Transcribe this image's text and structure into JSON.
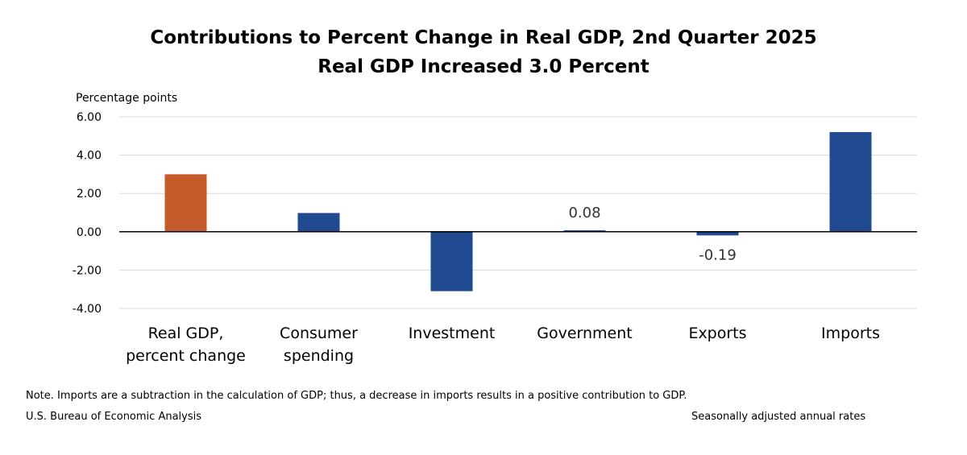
{
  "chart_data": {
    "type": "bar",
    "title": "Contributions to Percent Change in Real GDP, 2nd Quarter 2025",
    "subtitle": "Real GDP Increased 3.0 Percent",
    "ylabel": "Percentage points",
    "ylim": [
      -4,
      6
    ],
    "yticks": [
      "6.00",
      "4.00",
      "2.00",
      "0.00",
      "-2.00",
      "-4.00"
    ],
    "ytick_values": [
      6,
      4,
      2,
      0,
      -2,
      -4
    ],
    "grid": true,
    "categories": [
      [
        "Real GDP,",
        "percent change"
      ],
      [
        "Consumer",
        "spending"
      ],
      [
        "Investment"
      ],
      [
        "Government"
      ],
      [
        "Exports"
      ],
      [
        "Imports"
      ]
    ],
    "values": [
      3.0,
      0.98,
      -3.1,
      0.08,
      -0.19,
      5.2
    ],
    "data_labels": [
      "",
      "",
      "",
      "0.08",
      "-0.19",
      ""
    ],
    "bar_colors": [
      "#C55A2B",
      "#1F4A8F",
      "#1F4A8F",
      "#1F4A8F",
      "#1F4A8F",
      "#1F4A8F"
    ],
    "gridline_color": "#D9D9D9",
    "axis_color": "#000000"
  },
  "notes": {
    "main": "Note. Imports are a subtraction in the calculation of GDP; thus, a decrease in imports results in a positive contribution to GDP.",
    "source": "U.S. Bureau of Economic Analysis",
    "rates": "Seasonally adjusted annual rates"
  }
}
